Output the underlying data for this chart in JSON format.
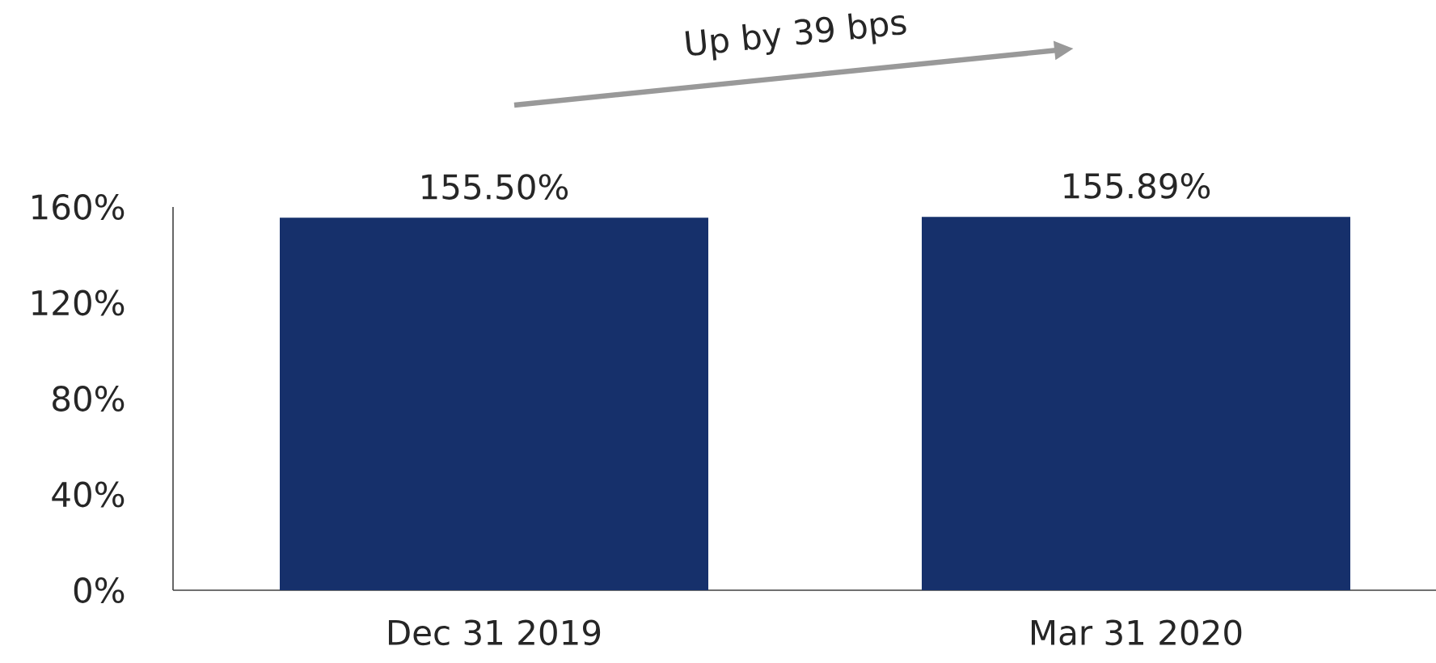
{
  "chart_data": {
    "type": "bar",
    "categories": [
      "Dec 31 2019",
      "Mar 31 2020"
    ],
    "values": [
      155.5,
      155.89
    ],
    "value_labels": [
      "155.50%",
      "155.89%"
    ],
    "color": "#16306b",
    "ylim": [
      0,
      160
    ],
    "yticks": [
      {
        "value": 0,
        "label": "0%"
      },
      {
        "value": 40,
        "label": "40%"
      },
      {
        "value": 80,
        "label": "80%"
      },
      {
        "value": 120,
        "label": "120%"
      },
      {
        "value": 160,
        "label": "160%"
      }
    ],
    "annotations": [
      "Up by 39 bps"
    ]
  }
}
